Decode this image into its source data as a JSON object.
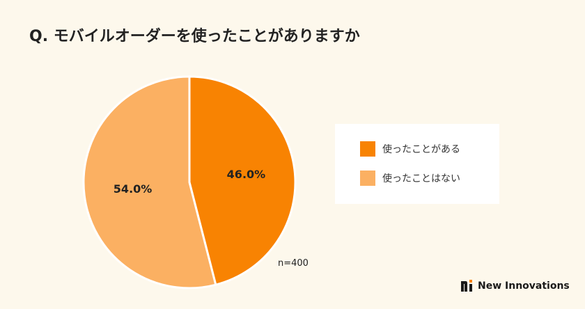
{
  "title": "Q. モバイルオーダーを使ったことがありますか",
  "chart_data": {
    "type": "pie",
    "slices": [
      {
        "label": "使ったことがある",
        "value": 46.0,
        "display": "46.0%",
        "color": "#f88302"
      },
      {
        "label": "使ったことはない",
        "value": 54.0,
        "display": "54.0%",
        "color": "#fbb062"
      }
    ],
    "legend_position": "right",
    "note": "n=400"
  },
  "colors": {
    "background": "#fdf8ec",
    "slice_border": "#ffffff"
  },
  "brand": {
    "name": "New Innovations",
    "icon": "new-innovations-logo-icon"
  }
}
